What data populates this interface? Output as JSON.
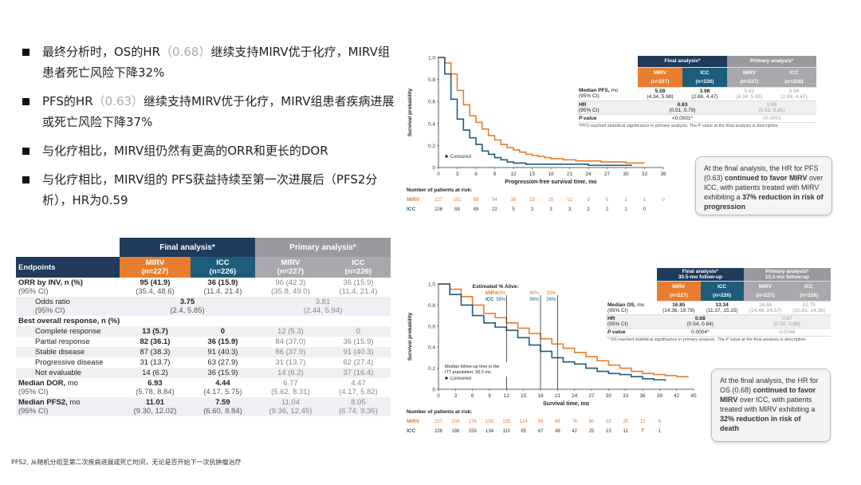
{
  "bullets": [
    {
      "pre": "最终分析时，OS的HR",
      "hr": "（0.68）",
      "post": "继续支持MIRV优于化疗，MIRV组患者死亡风险下降32%"
    },
    {
      "pre": "PFS的HR",
      "hr": "（0.63）",
      "post": "继续支持MIRV优于化疗，MIRV组患者疾病进展或死亡风险下降37%"
    },
    {
      "pre": "与化疗相比，MIRV组仍然有更高的ORR和更长的DOR",
      "hr": "",
      "post": ""
    },
    {
      "pre": "与化疗相比，MIRV组的 PFS获益持续至第一次进展后（PFS2分析），HR为0.59",
      "hr": "",
      "post": ""
    }
  ],
  "endpoints_table": {
    "final_label": "Final analysis*",
    "primary_label": "Primary analysis*",
    "endpoints_label": "Endpoints",
    "arms": {
      "mirv": "MIRV",
      "mirv_n": "(n=227)",
      "icc": "ICC",
      "icc_n": "(n=226)"
    },
    "rows": [
      {
        "label": "ORR by INV, n (%)",
        "sub": "(95% CI)",
        "f_mirv": "95 (41.9)",
        "f_mirv2": "(35.4, 48.6)",
        "f_icc": "36 (15.9)",
        "f_icc2": "(11.4, 21.4)",
        "p_mirv": "96 (42.3)",
        "p_mirv2": "(35.8, 49.0)",
        "p_icc": "36 (15.9)",
        "p_icc2": "(11.4, 21.4)"
      },
      {
        "label": "Odds ratio",
        "sub": "(95% CI)",
        "f_both": "3.75",
        "f_both2": "(2.4, 5.85)",
        "p_both": "3.81",
        "p_both2": "(2.44, 5.94)"
      }
    ],
    "bor_label": "Best overall response, n (%)",
    "bor_rows": [
      {
        "label": "Complete response",
        "f_mirv": "13 (5.7)",
        "f_icc": "0",
        "p_mirv": "12 (5.3)",
        "p_icc": "0"
      },
      {
        "label": "Partial response",
        "f_mirv": "82 (36.1)",
        "f_icc": "36 (15.9)",
        "p_mirv": "84 (37.0)",
        "p_icc": "36 (15.9)"
      },
      {
        "label": "Stable disease",
        "f_mirv": "87 (38.3)",
        "f_icc": "91 (40.3)",
        "p_mirv": "86 (37.9)",
        "p_icc": "91 (40.3)"
      },
      {
        "label": "Progressive disease",
        "f_mirv": "31 (13.7)",
        "f_icc": "63 (27.9)",
        "p_mirv": "31 (13.7)",
        "p_icc": "62 (27.4)"
      },
      {
        "label": "Not evaluable",
        "f_mirv": "14 (6.2)",
        "f_icc": "36 (15.9)",
        "p_mirv": "14 (6.2)",
        "p_icc": "37 (16.4)"
      }
    ],
    "dor": {
      "label": "Median DOR,",
      "unit": " mo",
      "sub": "(95% CI)",
      "f_mirv": "6.93",
      "f_mirv2": "(5.78, 8.84)",
      "f_icc": "4.44",
      "f_icc2": "(4.17, 5.75)",
      "p_mirv": "6.77",
      "p_mirv2": "(5.62, 8.31)",
      "p_icc": "4.47",
      "p_icc2": "(4.17, 5.82)"
    },
    "pfs2": {
      "label": "Median PFS2,",
      "unit": " mo",
      "sub": "(95% CI)",
      "f_mirv": "11.01",
      "f_mirv2": "(9.30, 12.02)",
      "f_icc": "7.59",
      "f_icc2": "(6.60, 8.84)",
      "p_mirv": "11.04",
      "p_mirv2": "(9.36, 12.45)",
      "p_icc": "8.05",
      "p_icc2": "(6.74, 9.36)"
    }
  },
  "footnote": "PFS2, 从随机分组至第二次疾病进展或死亡时间，无论是否开始下一次抗肿瘤治疗",
  "pfs_chart": {
    "ylabel": "Survival probability",
    "xlabel": "Progression-free survival time, mo",
    "yticks": [
      "0",
      "0.2",
      "0.4",
      "0.6",
      "0.8",
      "1.0"
    ],
    "xticks": [
      "0",
      "3",
      "6",
      "9",
      "12",
      "15",
      "18",
      "21",
      "24",
      "27",
      "30",
      "33",
      "36"
    ],
    "censored": "Censored",
    "risk_title": "Number of patients at risk:",
    "mirv_label": "MIRV",
    "icc_label": "ICC",
    "mirv_risk": [
      "227",
      "151",
      "89",
      "54",
      "36",
      "23",
      "15",
      "12",
      "9",
      "5",
      "2",
      "1",
      "0"
    ],
    "icc_risk": [
      "226",
      "88",
      "49",
      "22",
      "5",
      "3",
      "3",
      "3",
      "2",
      "2",
      "1",
      "0"
    ],
    "table": {
      "final": "Final analysis*",
      "primary": "Primary analysis*",
      "mirv": "MIRV",
      "mirv_n": "(n=227)",
      "icc": "ICC",
      "icc_n": "(n=226)",
      "r1_label": "Median PFS,",
      "r1_unit": " mo",
      "r1_sub": "(95% CI)",
      "r1": [
        "5.59",
        "3.98",
        "5.62",
        "3.98"
      ],
      "r1_ci": [
        "(4.34, 5.98)",
        "(2.86, 4.47)",
        "(4.34, 5.95)",
        "(2.86, 4.47)"
      ],
      "hr_label": "HR",
      "hr_sub": "(95% CI)",
      "hr_f": "0.63",
      "hr_f_ci": "(0.51, 0.79)",
      "hr_p": "0.65",
      "hr_p_ci": "(0.52, 0.81)",
      "p_label": "P value",
      "p_f": "<0.0001*",
      "p_p": "<0.0001",
      "note": "*PFS reached statistical significance in primary analysis. The P value at the final analysis is descriptive."
    },
    "callout_pre": "At the final analysis, the HR for PFS (0.63) ",
    "callout_b1": "continued to favor MIRV",
    "callout_mid": " over ICC, with patients treated with MIRV exhibiting a ",
    "callout_b2": "37% reduction in risk of progression",
    "chart_data": {
      "type": "line",
      "series": [
        {
          "name": "MIRV",
          "x": [
            0,
            1,
            2,
            3,
            4,
            5,
            6,
            7,
            8,
            9,
            10,
            11,
            12,
            13,
            14,
            15,
            16,
            17,
            18,
            20,
            22,
            24,
            26,
            28,
            30,
            32,
            33
          ],
          "values": [
            1.0,
            0.95,
            0.85,
            0.7,
            0.57,
            0.47,
            0.41,
            0.35,
            0.29,
            0.25,
            0.21,
            0.18,
            0.16,
            0.14,
            0.12,
            0.11,
            0.1,
            0.09,
            0.08,
            0.07,
            0.06,
            0.06,
            0.05,
            0.05,
            0.04,
            0.04,
            0.04
          ]
        },
        {
          "name": "ICC",
          "x": [
            0,
            1,
            2,
            3,
            4,
            5,
            6,
            7,
            8,
            9,
            10,
            11,
            12,
            14,
            16,
            18,
            20,
            24,
            28,
            31
          ],
          "values": [
            1.0,
            0.85,
            0.62,
            0.44,
            0.34,
            0.27,
            0.21,
            0.15,
            0.12,
            0.09,
            0.07,
            0.05,
            0.04,
            0.03,
            0.03,
            0.03,
            0.03,
            0.02,
            0.02,
            0.02
          ]
        }
      ],
      "xlim": [
        0,
        36
      ],
      "ylim": [
        0,
        1.0
      ]
    }
  },
  "os_chart": {
    "ylabel": "Survival probability",
    "xlabel": "Survival time, mo",
    "yticks": [
      "0",
      "0.2",
      "0.4",
      "0.6",
      "0.8",
      "1.0"
    ],
    "xticks": [
      "0",
      "3",
      "6",
      "9",
      "12",
      "15",
      "18",
      "21",
      "24",
      "27",
      "30",
      "33",
      "36",
      "39",
      "42",
      "45"
    ],
    "censored": "Censored",
    "est_title": "Estimated % Alive:",
    "est_mirv_label": "MIRV",
    "est_icc_label": "ICC",
    "est_mirv": [
      "63%",
      "48%",
      "33%"
    ],
    "est_icc": [
      "56%",
      "36%",
      "26%"
    ],
    "median_fu": "Median follow-up time in the ITT population: 30.5 mo",
    "risk_title": "Number of patients at risk:",
    "mirv_label": "MIRV",
    "icc_label": "ICC",
    "mirv_risk": [
      "227",
      "204",
      "176",
      "158",
      "135",
      "114",
      "99",
      "86",
      "76",
      "60",
      "33",
      "25",
      "12",
      "6"
    ],
    "icc_risk": [
      "226",
      "186",
      "159",
      "134",
      "110",
      "85",
      "67",
      "48",
      "42",
      "25",
      "13",
      "11",
      "7",
      "1"
    ],
    "table": {
      "final": "Final analysis*",
      "final_sub": "30.5-mo follow-up",
      "primary": "Primary analysis*",
      "primary_sub": "13.1-mo follow-up",
      "mirv": "MIRV",
      "mirv_n": "(n=227)",
      "icc": "ICC",
      "icc_n": "(n=226)",
      "r1_label": "Median OS,",
      "r1_unit": " mo",
      "r1_sub": "(95% CI)",
      "r1": [
        "16.85",
        "13.34",
        "16.46",
        "12.75"
      ],
      "r1_ci": [
        "(14.36, 19.78)",
        "(11.37, 15.15)",
        "(14.46, 24.57)",
        "(10.91, 14.36)"
      ],
      "hr_label": "HR",
      "hr_sub": "(95% CI)",
      "hr_f": "0.68",
      "hr_f_ci": "(0.54, 0.84)",
      "hr_p": "0.67",
      "hr_p_ci": "(0.50, 0.89)",
      "p_label": "P value",
      "p_f": "0.0004*",
      "p_p": "0.0046",
      "note": "* OS reached statistical significance in primary analysis. The P value at the final analysis is descriptive."
    },
    "callout_pre": "At the final analysis, the HR for OS (0.68) ",
    "callout_b1": "continued to favor MIRV",
    "callout_mid": " over ICC, with patients treated with MIRV exhibiting a ",
    "callout_b2": "32% reduction in risk of death",
    "chart_data": {
      "type": "line",
      "series": [
        {
          "name": "MIRV",
          "x": [
            0,
            2,
            4,
            6,
            8,
            10,
            12,
            14,
            16,
            18,
            20,
            22,
            24,
            26,
            28,
            30,
            32,
            34,
            36,
            38,
            40,
            42,
            44
          ],
          "values": [
            1.0,
            0.95,
            0.88,
            0.8,
            0.72,
            0.68,
            0.63,
            0.58,
            0.53,
            0.48,
            0.43,
            0.39,
            0.35,
            0.31,
            0.27,
            0.23,
            0.2,
            0.17,
            0.15,
            0.14,
            0.13,
            0.12,
            0.11
          ]
        },
        {
          "name": "ICC",
          "x": [
            0,
            2,
            4,
            6,
            8,
            10,
            12,
            14,
            16,
            18,
            20,
            22,
            24,
            26,
            28,
            30,
            32,
            34,
            36,
            38,
            40
          ],
          "values": [
            1.0,
            0.9,
            0.8,
            0.7,
            0.63,
            0.59,
            0.56,
            0.49,
            0.42,
            0.36,
            0.3,
            0.26,
            0.24,
            0.2,
            0.17,
            0.15,
            0.14,
            0.12,
            0.1,
            0.09,
            0.08
          ]
        }
      ],
      "xlim": [
        0,
        45
      ],
      "ylim": [
        0,
        1.0
      ]
    },
    "colors": {
      "mirv": "#e87d2f",
      "icc": "#1e5c7c"
    }
  }
}
